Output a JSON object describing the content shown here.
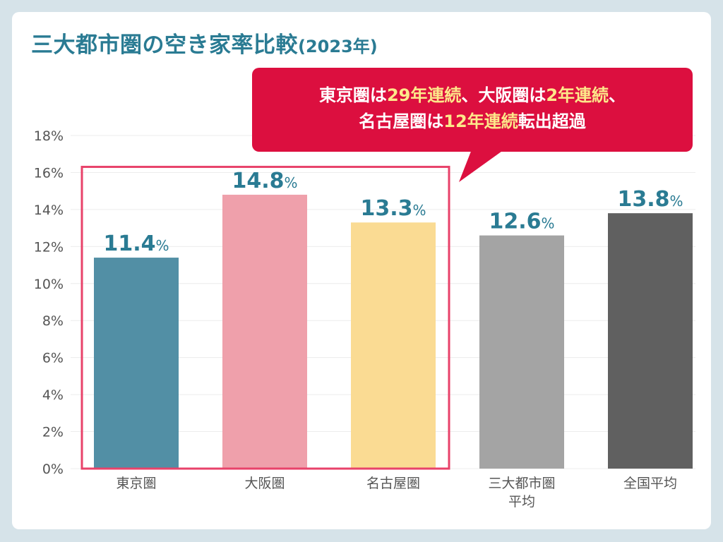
{
  "chart_data": {
    "type": "bar",
    "title": "三大都市圏の空き家率比較",
    "title_suffix": "(2023年)",
    "categories": [
      "東京圏",
      "大阪圏",
      "名古屋圏",
      "三大都市圏平均",
      "全国平均"
    ],
    "category_lines": [
      [
        "東京圏"
      ],
      [
        "大阪圏"
      ],
      [
        "名古屋圏"
      ],
      [
        "三大都市圏",
        "平均"
      ],
      [
        "全国平均"
      ]
    ],
    "values": [
      11.4,
      14.8,
      13.3,
      12.6,
      13.8
    ],
    "value_labels": [
      "11.4",
      "14.8",
      "13.3",
      "12.6",
      "13.8"
    ],
    "value_unit": "%",
    "colors": [
      "#528fa5",
      "#efa0ab",
      "#fadb93",
      "#a4a4a4",
      "#606060"
    ],
    "ylim": [
      0,
      18
    ],
    "yticks": [
      0,
      2,
      4,
      6,
      8,
      10,
      12,
      14,
      16,
      18
    ],
    "ytick_labels": [
      "0%",
      "2%",
      "4%",
      "6%",
      "8%",
      "10%",
      "12%",
      "14%",
      "16%",
      "18%"
    ],
    "xlabel": "",
    "ylabel": "",
    "grid": true,
    "highlight_group": [
      "東京圏",
      "大阪圏",
      "名古屋圏"
    ],
    "highlight_color": "#e8426a",
    "label_color": "#2a7b93"
  },
  "callout": {
    "line1": [
      {
        "text": "東京圏は",
        "highlight": false
      },
      {
        "text": "29年連続",
        "highlight": true
      },
      {
        "text": "、大阪圏は",
        "highlight": false
      },
      {
        "text": "2年連続",
        "highlight": true
      },
      {
        "text": "、",
        "highlight": false
      }
    ],
    "line2": [
      {
        "text": "名古屋圏は",
        "highlight": false
      },
      {
        "text": "12年連続",
        "highlight": true
      },
      {
        "text": "転出超過",
        "highlight": false
      }
    ],
    "background": "#dc0f3f",
    "highlight_color": "#fde88a"
  }
}
